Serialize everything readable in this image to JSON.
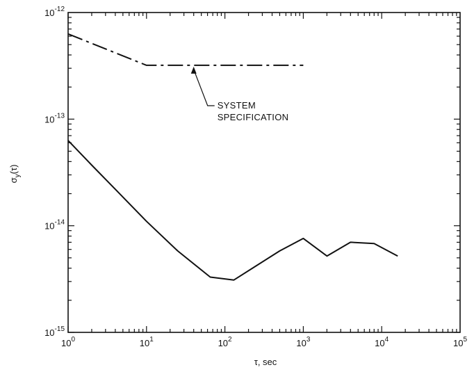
{
  "chart_data": {
    "type": "line",
    "title": "",
    "xlabel": "τ, sec",
    "ylabel": "σy(τ)",
    "xscale": "log",
    "yscale": "log",
    "xlim": [
      1,
      100000
    ],
    "ylim": [
      1e-15,
      1e-12
    ],
    "grid": false,
    "x_ticks": [
      {
        "base": "10",
        "exp": "0"
      },
      {
        "base": "10",
        "exp": "1"
      },
      {
        "base": "10",
        "exp": "2"
      },
      {
        "base": "10",
        "exp": "3"
      },
      {
        "base": "10",
        "exp": "4"
      },
      {
        "base": "10",
        "exp": "5"
      }
    ],
    "y_ticks": [
      {
        "base": "10",
        "exp": "-15"
      },
      {
        "base": "10",
        "exp": "-14"
      },
      {
        "base": "10",
        "exp": "-13"
      },
      {
        "base": "10",
        "exp": "-12"
      }
    ],
    "series": [
      {
        "style": "dash-dot",
        "x": [
          1,
          10,
          1000
        ],
        "y": [
          6.3e-13,
          3.2e-13,
          3.2e-13
        ]
      },
      {
        "style": "solid",
        "x": [
          1,
          2,
          4,
          10,
          25,
          65,
          130,
          250,
          500,
          1000,
          2000,
          4000,
          8000,
          16000
        ],
        "y": [
          6.3e-14,
          3.7e-14,
          2.2e-14,
          1.1e-14,
          5.8e-15,
          3.3e-15,
          3.1e-15,
          4.2e-15,
          5.8e-15,
          7.6e-15,
          5.2e-15,
          7e-15,
          6.8e-15,
          5.2e-15
        ]
      }
    ],
    "annotations": [
      {
        "lines": [
          "SYSTEM",
          "SPECIFICATION"
        ],
        "points_to": {
          "x": 40,
          "y": 3.2e-13
        }
      }
    ]
  }
}
